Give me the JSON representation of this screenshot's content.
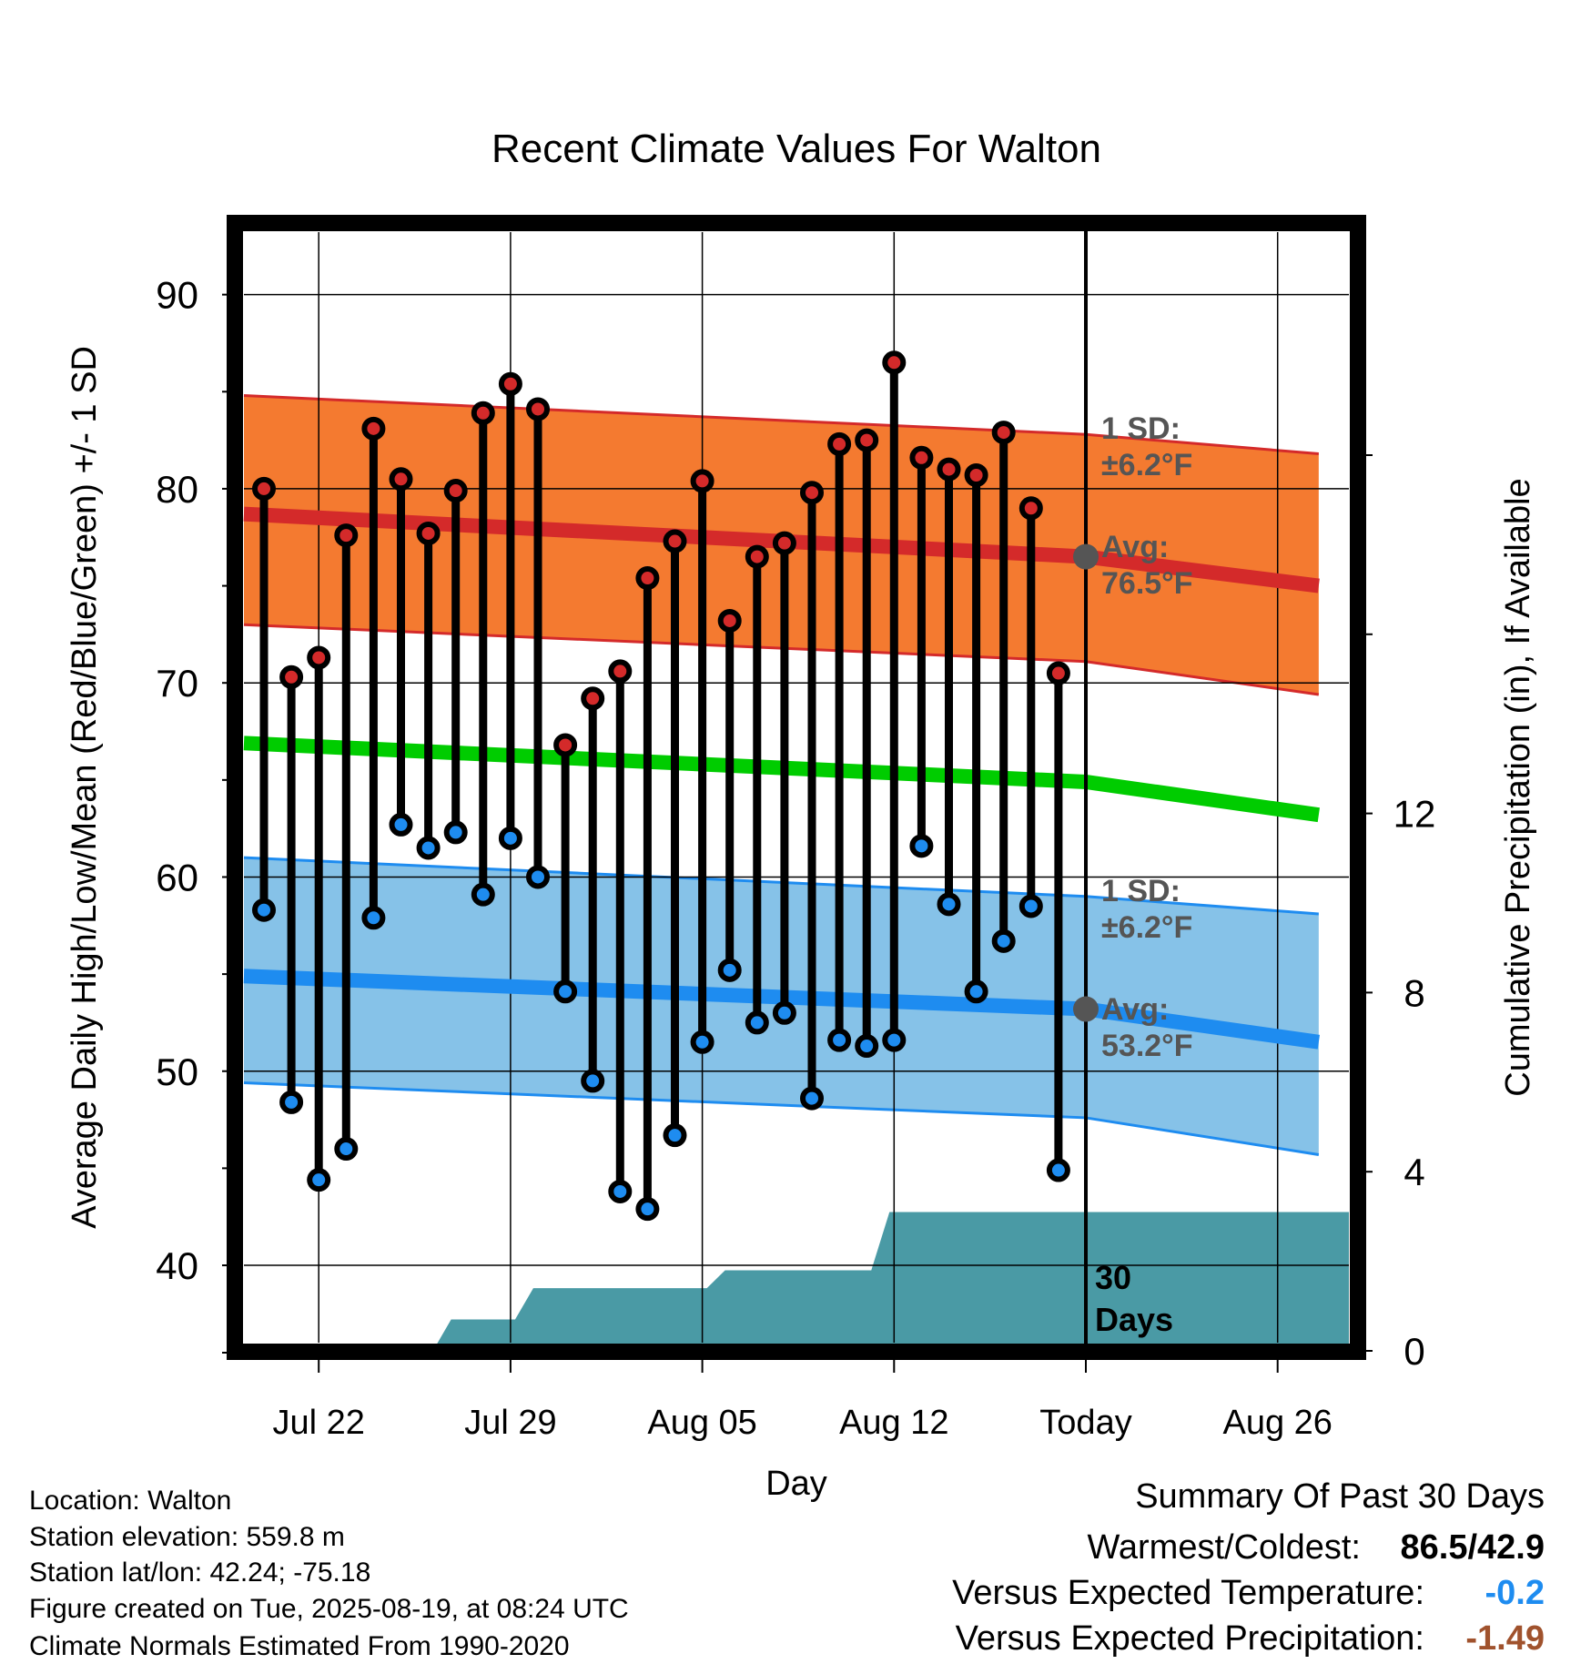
{
  "chart_data": {
    "type": "line",
    "title": "Recent Climate Values For Walton",
    "xlabel": "Day",
    "ylabel": "Average Daily High/Low/Mean (Red/Blue/Green) +/- 1 SD",
    "y2label": "Cumulative Precipitation (in), If Available",
    "ylim": [
      35.5,
      92
    ],
    "y_ticks": [
      "90",
      "80",
      "70",
      "60",
      "50",
      "40"
    ],
    "y2lim": [
      0,
      24
    ],
    "y2_ticks": [
      "12",
      "8",
      "4",
      "0"
    ],
    "x_ticks": [
      "Jul 22",
      "Jul 29",
      "Aug 05",
      "Aug 12",
      "Today",
      "Aug 26"
    ],
    "grid": true,
    "days": [
      "Jul 20",
      "Jul 21",
      "Jul 22",
      "Jul 23",
      "Jul 24",
      "Jul 25",
      "Jul 26",
      "Jul 27",
      "Jul 28",
      "Jul 29",
      "Jul 30",
      "Jul 31",
      "Aug 01",
      "Aug 02",
      "Aug 03",
      "Aug 04",
      "Aug 05",
      "Aug 06",
      "Aug 07",
      "Aug 08",
      "Aug 09",
      "Aug 10",
      "Aug 11",
      "Aug 12",
      "Aug 13",
      "Aug 14",
      "Aug 15",
      "Aug 16",
      "Aug 17",
      "Aug 18"
    ],
    "series": [
      {
        "name": "High",
        "color": "#d42a2a",
        "values": [
          80.0,
          70.3,
          71.3,
          77.6,
          83.1,
          80.5,
          77.7,
          79.9,
          83.9,
          85.4,
          84.1,
          66.8,
          69.2,
          70.6,
          75.4,
          77.3,
          80.4,
          73.2,
          76.5,
          77.2,
          79.8,
          82.3,
          82.5,
          86.5,
          81.6,
          81.0,
          80.7,
          82.9,
          79.0,
          70.5
        ]
      },
      {
        "name": "Low",
        "color": "#1e8cf0",
        "values": [
          58.3,
          48.4,
          44.4,
          46.0,
          57.9,
          62.7,
          61.5,
          62.3,
          59.1,
          62.0,
          60.0,
          54.1,
          49.5,
          43.8,
          42.9,
          46.7,
          51.5,
          55.2,
          52.5,
          53.0,
          48.6,
          51.6,
          51.3,
          51.6,
          61.6,
          58.6,
          54.1,
          56.7,
          58.5,
          44.9
        ]
      }
    ],
    "normals": {
      "high_avg": [
        78.7,
        76.5,
        75.0
      ],
      "high_sd_band": [
        [
          73.0,
          84.8
        ],
        [
          71.1,
          82.8
        ],
        [
          69.4,
          81.8
        ]
      ],
      "mean_avg": [
        66.9,
        64.9,
        63.2
      ],
      "low_avg": [
        54.9,
        53.2,
        51.5
      ],
      "low_sd_band": [
        [
          49.4,
          61.0
        ],
        [
          47.6,
          59.0
        ],
        [
          45.7,
          58.1
        ]
      ]
    },
    "cumulative_precip": [
      0,
      0,
      0,
      0,
      0,
      0,
      0,
      0.7,
      0.7,
      0.7,
      1.4,
      1.4,
      1.4,
      1.4,
      1.4,
      1.4,
      1.4,
      1.8,
      1.8,
      1.8,
      1.8,
      1.8,
      1.8,
      3.1,
      3.1,
      3.1,
      3.1,
      3.1,
      3.1,
      3.1,
      3.1
    ],
    "annotations": {
      "high_sd": "1 SD:",
      "high_sd_value": "±6.2°F",
      "high_avg": "Avg:",
      "high_avg_value": "76.5°F",
      "low_sd": "1 SD:",
      "low_sd_value": "±6.2°F",
      "low_avg": "Avg:",
      "low_avg_value": "53.2°F",
      "days_count": "30",
      "days_word": "Days"
    }
  },
  "info": {
    "location": "Location: Walton",
    "elevation": "Station elevation: 559.8 m",
    "latlon": "Station lat/lon: 42.24; -75.18",
    "created": "Figure created on Tue, 2025-08-19, at 08:24 UTC",
    "normals": "Climate Normals Estimated From 1990-2020"
  },
  "summary": {
    "title": "Summary Of Past 30 Days",
    "warm_cold_label": "Warmest/Coldest:",
    "warm_cold_value": "86.5/42.9",
    "temp_label": "Versus Expected Temperature:",
    "temp_value": "-0.2",
    "temp_color": "#1e8cf0",
    "precip_label": "Versus Expected Precipitation:",
    "precip_value": "-1.49",
    "precip_color": "#a0522d"
  },
  "colors": {
    "high_band": "#f47a30",
    "high_line": "#d42a2a",
    "low_band": "#86c2e8",
    "low_line": "#1e8cf0",
    "mean_line": "#00cc00",
    "precip_fill": "#4a9aa5",
    "today_marker": "#555555"
  }
}
